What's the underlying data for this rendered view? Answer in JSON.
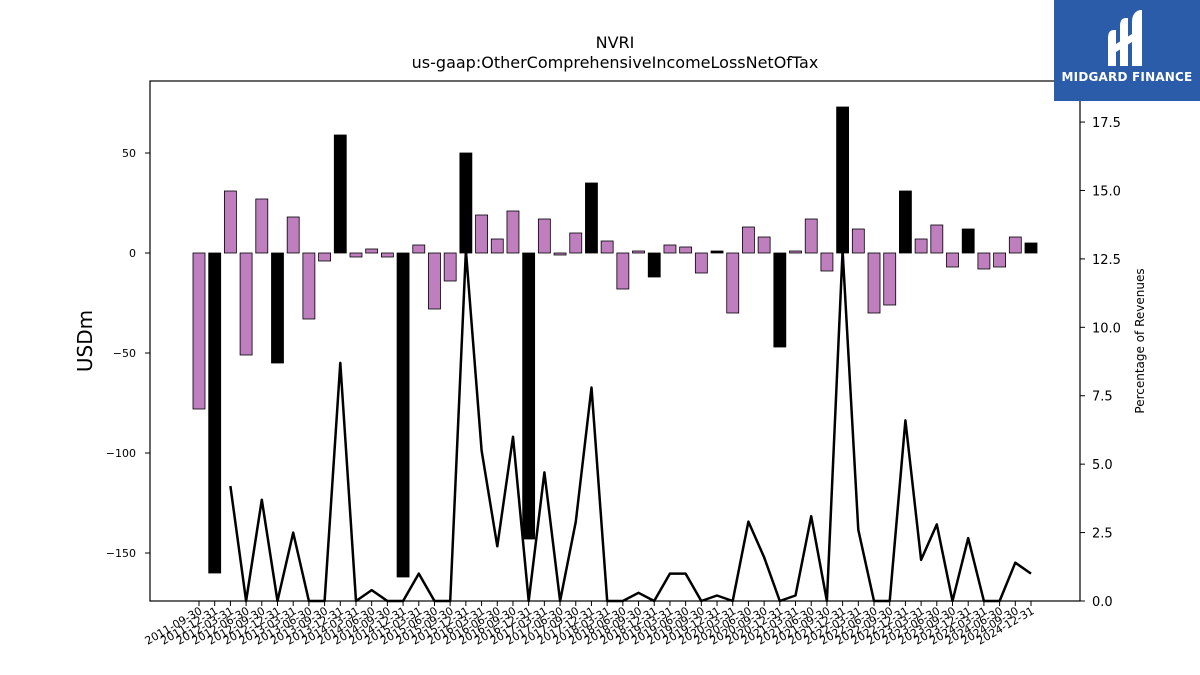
{
  "chart_data": {
    "type": "bar+line",
    "title": "NVRI",
    "subtitle": "us-gaap:OtherComprehensiveIncomeLossNetOfTax",
    "ylabel": "USDm",
    "y2label": "Percentage of Revenues",
    "ylim": [
      -174,
      86
    ],
    "y2lim": [
      0,
      19
    ],
    "yticks": [
      50,
      0,
      -50,
      -100,
      -150
    ],
    "ytick_labels": [
      "50",
      "0",
      "−50",
      "−100",
      "−150"
    ],
    "y2ticks": [
      0,
      2.5,
      5,
      7.5,
      10,
      12.5,
      15,
      17.5
    ],
    "y2tick_labels": [
      "0.0",
      "2.5",
      "5.0",
      "7.5",
      "10.0",
      "12.5",
      "15.0",
      "17.5"
    ],
    "categories": [
      "2011-09-30",
      "2011-12-31",
      "2012-03-31",
      "2012-06-30",
      "2012-09-30",
      "2012-12-31",
      "2013-03-31",
      "2013-06-30",
      "2013-09-30",
      "2013-12-31",
      "2014-03-31",
      "2014-06-30",
      "2014-09-30",
      "2014-12-31",
      "2015-03-31",
      "2015-06-30",
      "2015-09-30",
      "2015-12-31",
      "2016-03-31",
      "2016-06-30",
      "2016-09-30",
      "2016-12-31",
      "2017-03-31",
      "2017-06-30",
      "2017-09-30",
      "2017-12-31",
      "2018-03-31",
      "2018-06-30",
      "2018-09-30",
      "2018-12-31",
      "2019-03-31",
      "2019-06-30",
      "2019-09-30",
      "2019-12-31",
      "2020-03-31",
      "2020-06-30",
      "2020-09-30",
      "2020-12-31",
      "2021-03-31",
      "2021-06-30",
      "2021-09-30",
      "2021-12-31",
      "2022-03-31",
      "2022-06-30",
      "2022-09-30",
      "2022-12-31",
      "2023-03-31",
      "2023-06-30",
      "2023-09-30",
      "2023-12-31",
      "2024-03-31",
      "2024-06-30",
      "2024-09-30",
      "2024-12-31"
    ],
    "values": [
      -78,
      -160,
      31,
      -51,
      27,
      -55,
      18,
      -33,
      -4,
      59,
      -2,
      2,
      -2,
      -162,
      4,
      -28,
      -14,
      50,
      19,
      7,
      21,
      -143,
      17,
      -1,
      10,
      35,
      6,
      -18,
      1,
      -12,
      4,
      3,
      -10,
      1,
      -30,
      13,
      8,
      -47,
      1,
      17,
      -9,
      73,
      12,
      -30,
      -26,
      31,
      7,
      14,
      -7,
      12,
      -8,
      -7,
      8,
      5
    ],
    "bar_colors_note": "black = Q4 (annual) bars, purple = quarterly bars",
    "highlight_color": "#000000",
    "bar_color": "#bf7fbf",
    "line_color": "#000000",
    "line_values": [
      null,
      null,
      4.2,
      0,
      3.7,
      0,
      2.5,
      0,
      0,
      8.7,
      0,
      0.4,
      0,
      0,
      1.0,
      0,
      0,
      12.8,
      5.5,
      2.0,
      6.0,
      0,
      4.7,
      0,
      2.9,
      7.8,
      0,
      0,
      0.3,
      0,
      1.0,
      1.0,
      0,
      0.2,
      0,
      2.9,
      1.6,
      0,
      0.2,
      3.1,
      0,
      12.8,
      2.6,
      0,
      0,
      6.6,
      1.5,
      2.8,
      0,
      2.3,
      0,
      0,
      1.4,
      1.0
    ],
    "grid": false,
    "legend": "none"
  },
  "brand": {
    "logo_text": "MIDGARD FINANCE",
    "logo_color": "#2a5caa"
  }
}
